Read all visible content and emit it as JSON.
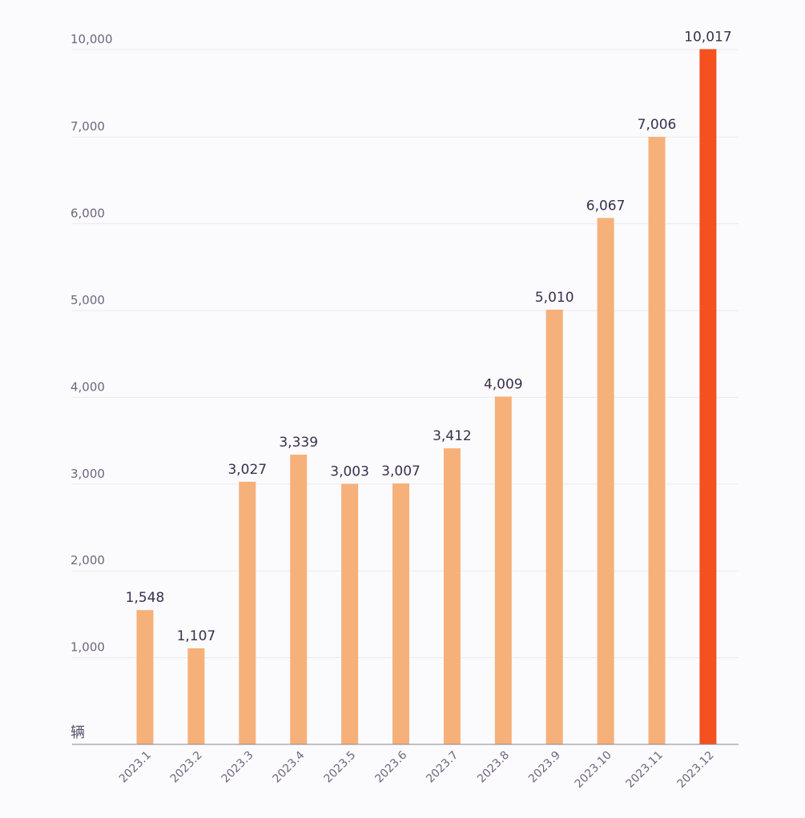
{
  "chart_data": {
    "type": "bar",
    "unit_label": "辆",
    "categories": [
      "2023.1",
      "2023.2",
      "2023.3",
      "2023.4",
      "2023.5",
      "2023.6",
      "2023.7",
      "2023.8",
      "2023.9",
      "2023.10",
      "2023.11",
      "2023.12"
    ],
    "values": [
      1548,
      1107,
      3027,
      3339,
      3003,
      3007,
      3412,
      4009,
      5010,
      6067,
      7006,
      10017
    ],
    "value_labels": [
      "1,548",
      "1,107",
      "3,027",
      "3,339",
      "3,003",
      "3,007",
      "3,412",
      "4,009",
      "5,010",
      "6,067",
      "7,006",
      "10,017"
    ],
    "y_ticks": [
      {
        "value": 1000,
        "label": "1,000"
      },
      {
        "value": 2000,
        "label": "2,000"
      },
      {
        "value": 3000,
        "label": "3,000"
      },
      {
        "value": 4000,
        "label": "4,000"
      },
      {
        "value": 5000,
        "label": "5,000"
      },
      {
        "value": 6000,
        "label": "6,000"
      },
      {
        "value": 7000,
        "label": "7,000"
      },
      {
        "value": 10000,
        "label": "10,000"
      }
    ],
    "ylim": [
      0,
      10000
    ],
    "axis_note": "y-axis is non-linear: the 7,000 gridline is followed directly by 10,000",
    "grid": true,
    "colors": {
      "bar": "#f6b07a",
      "highlight_bar": "#f4511e",
      "grid": "#ebe9f0",
      "axis": "#8a8296"
    },
    "highlight_index": 11
  }
}
